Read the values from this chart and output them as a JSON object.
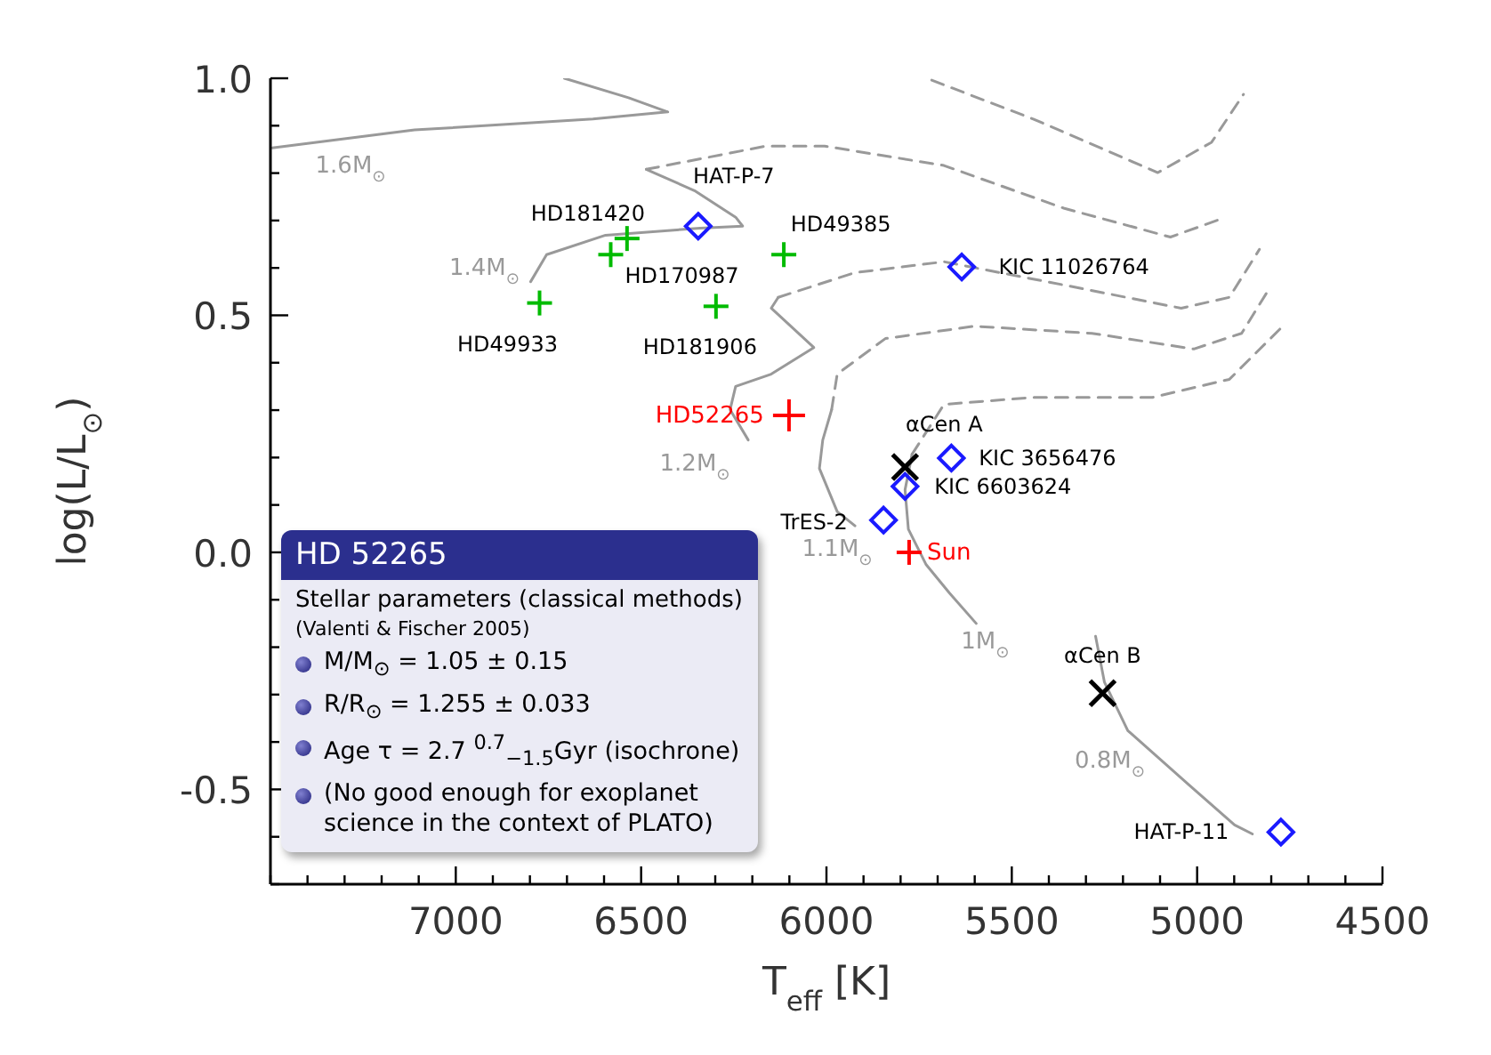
{
  "chart_data": {
    "type": "scatter",
    "xlabel": "T$_{eff}$ [K]",
    "ylabel": "log(L/L$_{⊙}$)",
    "xlim": [
      7500,
      4500
    ],
    "xticks": [
      {
        "value": 7500,
        "label": null
      },
      {
        "value": 7400,
        "label": null
      },
      {
        "value": 7300,
        "label": null
      },
      {
        "value": 7200,
        "label": null
      },
      {
        "value": 7100,
        "label": null
      },
      7000,
      {
        "value": 6900,
        "label": null
      },
      {
        "value": 6800,
        "label": null
      },
      {
        "value": 6700,
        "label": null
      },
      {
        "value": 6600,
        "label": null
      },
      6500,
      {
        "value": 6400,
        "label": null
      },
      {
        "value": 6300,
        "label": null
      },
      {
        "value": 6200,
        "label": null
      },
      {
        "value": 6100,
        "label": null
      },
      6000,
      {
        "value": 5900,
        "label": null
      },
      {
        "value": 5800,
        "label": null
      },
      {
        "value": 5700,
        "label": null
      },
      {
        "value": 5600,
        "label": null
      },
      5500,
      {
        "value": 5400,
        "label": null
      },
      {
        "value": 5300,
        "label": null
      },
      {
        "value": 5200,
        "label": null
      },
      {
        "value": 5100,
        "label": null
      },
      5000,
      {
        "value": 4900,
        "label": null
      },
      {
        "value": 4800,
        "label": null
      },
      {
        "value": 4700,
        "label": null
      },
      {
        "value": 4600,
        "label": null
      },
      4500
    ],
    "ylim": [
      -0.7,
      1.0
    ],
    "yticks": [
      {
        "value": -0.7,
        "label": null
      },
      {
        "value": -0.6,
        "label": null
      },
      {
        "value": -0.5,
        "label": "-0.5"
      },
      {
        "value": -0.4,
        "label": null
      },
      {
        "value": -0.3,
        "label": null
      },
      {
        "value": -0.2,
        "label": null
      },
      {
        "value": -0.1,
        "label": null
      },
      {
        "value": 0,
        "label": "0.0"
      },
      {
        "value": 0.1,
        "label": null
      },
      {
        "value": 0.2,
        "label": null
      },
      {
        "value": 0.3,
        "label": null
      },
      {
        "value": 0.4,
        "label": null
      },
      {
        "value": 0.5,
        "label": "0.5"
      },
      {
        "value": 0.6,
        "label": null
      },
      {
        "value": 0.7,
        "label": null
      },
      {
        "value": 0.8,
        "label": null
      },
      {
        "value": 0.9,
        "label": null
      },
      {
        "value": 1.0,
        "label": "1.0"
      }
    ],
    "series": [
      {
        "type": "line",
        "name": "1.6M$_{⊙}$",
        "color": "#999999",
        "line_style": "solid",
        "marker": "none",
        "x": [
          7495,
          7111,
          6630,
          6428,
          6534,
          6707
        ],
        "values": [
          0.853,
          0.891,
          0.914,
          0.929,
          0.959,
          1.0
        ]
      },
      {
        "type": "line",
        "color": "#999999",
        "line_style": "dashed",
        "marker": "none",
        "x": [
          5716,
          5442,
          5106,
          4961,
          4875
        ],
        "values": [
          0.996,
          0.914,
          0.801,
          0.865,
          0.966
        ]
      },
      {
        "type": "line",
        "name": "1.4M$_{⊙}$",
        "color": "#999999",
        "line_style": "solid",
        "marker": "none",
        "x": [
          6798,
          6755,
          6596,
          6341,
          6226,
          6245,
          6356,
          6466,
          6486
        ],
        "values": [
          0.571,
          0.628,
          0.669,
          0.684,
          0.688,
          0.707,
          0.763,
          0.801,
          0.808
        ]
      },
      {
        "type": "line",
        "color": "#999999",
        "line_style": "dashed",
        "marker": "none",
        "x": [
          6486,
          6163,
          6005,
          5683,
          5360,
          5072,
          4937
        ],
        "values": [
          0.808,
          0.857,
          0.857,
          0.816,
          0.726,
          0.665,
          0.703
        ]
      },
      {
        "type": "line",
        "name": "1.2M$_{⊙}$",
        "color": "#999999",
        "line_style": "solid",
        "marker": "none",
        "x": [
          6211,
          6260,
          6245,
          6149,
          6034,
          6149,
          6130
        ],
        "values": [
          0.237,
          0.301,
          0.35,
          0.376,
          0.432,
          0.515,
          0.538
        ]
      },
      {
        "type": "line",
        "color": "#999999",
        "line_style": "dashed",
        "marker": "none",
        "x": [
          6130,
          5923,
          5683,
          5360,
          5043,
          4913,
          4832
        ],
        "values": [
          0.538,
          0.59,
          0.613,
          0.564,
          0.515,
          0.538,
          0.639
        ]
      },
      {
        "type": "line",
        "name": "1.1M$_{⊙}$",
        "color": "#999999",
        "line_style": "solid",
        "marker": "none",
        "x": [
          5923,
          5971,
          6019,
          6010,
          5986
        ],
        "values": [
          0.056,
          0.086,
          0.177,
          0.237,
          0.301
        ]
      },
      {
        "type": "line",
        "color": "#999999",
        "line_style": "dashed",
        "marker": "none",
        "x": [
          5986,
          5971,
          5841,
          5601,
          5284,
          5009,
          4880,
          4808
        ],
        "values": [
          0.301,
          0.376,
          0.451,
          0.477,
          0.462,
          0.429,
          0.462,
          0.553
        ]
      },
      {
        "type": "line",
        "name": "1M$_{⊙}$",
        "color": "#999999",
        "line_style": "solid",
        "marker": "none",
        "x": [
          5596,
          5668,
          5731,
          5779,
          5788,
          5769
        ],
        "values": [
          -0.15,
          -0.086,
          -0.026,
          0.049,
          0.132,
          0.207
        ]
      },
      {
        "type": "line",
        "color": "#999999",
        "line_style": "dashed",
        "marker": "none",
        "x": [
          5769,
          5683,
          5442,
          5120,
          4913,
          4769
        ],
        "values": [
          0.207,
          0.312,
          0.327,
          0.327,
          0.365,
          0.477
        ]
      },
      {
        "type": "line",
        "name": "0.8M$_{⊙}$",
        "color": "#999999",
        "line_style": "solid",
        "marker": "none",
        "x": [
          5274,
          5250,
          5187,
          5024,
          4899,
          4851
        ],
        "values": [
          -0.177,
          -0.274,
          -0.376,
          -0.489,
          -0.575,
          -0.594
        ]
      },
      {
        "color": "#00bb00",
        "marker": "cross",
        "x": [
          6774,
          6582,
          6538,
          6298,
          6115
        ],
        "values": [
          0.526,
          0.628,
          0.662,
          0.519,
          0.628
        ]
      },
      {
        "color": "#1a1aff",
        "marker": "diamond",
        "x": [
          6346,
          5635,
          5663,
          5788,
          5846,
          4774
        ],
        "values": [
          0.688,
          0.602,
          0.199,
          0.139,
          0.068,
          -0.59
        ]
      },
      {
        "color": "#000000",
        "marker": "x",
        "x": [
          5788,
          5255
        ],
        "values": [
          0.18,
          -0.297
        ]
      },
      {
        "name": "HD52265",
        "color": "#ff0000",
        "marker": "cross",
        "x": [
          6101
        ],
        "values": [
          0.289
        ]
      },
      {
        "name": "Sun",
        "color": "#ff0000",
        "marker": "cross",
        "x": [
          5777
        ],
        "values": [
          0.0
        ]
      }
    ],
    "annotations": [
      "HD 52265",
      "Stellar parameters (classical methods)",
      "(Valenti & Fischer 2005)",
      "M/M$_{⊙}$ = 1.05 ± 0.15",
      "R/R$_{⊙}$ = 1.255 ± 0.033",
      "Age τ = 2.7 $^{0.7}$$_{−1.5}$Gyr (isochrone)",
      "(No good enough for exoplanet science in the context of PLATO)",
      {
        "text": "HD181420",
        "x": 6538,
        "y": 0.662
      },
      {
        "text": "HD170987",
        "x": 6582,
        "y": 0.628
      },
      {
        "text": "HD49933",
        "x": 6774,
        "y": 0.526
      },
      {
        "text": "HD181906",
        "x": 6298,
        "y": 0.519
      },
      {
        "text": "HAT-P-7",
        "x": 6346,
        "y": 0.688
      },
      {
        "text": "HD49385",
        "x": 6115,
        "y": 0.628
      },
      {
        "text": "KIC 11026764",
        "x": 5635,
        "y": 0.602
      },
      {
        "text": "αCen A",
        "x": 5788,
        "y": 0.18
      },
      {
        "text": "KIC 3656476",
        "x": 5663,
        "y": 0.199
      },
      {
        "text": "KIC 6603624",
        "x": 5788,
        "y": 0.139
      },
      {
        "text": "TrES-2",
        "x": 5846,
        "y": 0.068
      },
      {
        "text": "αCen B",
        "x": 5255,
        "y": -0.297
      },
      {
        "text": "HAT-P-11",
        "x": 4774,
        "y": -0.59
      }
    ]
  }
}
